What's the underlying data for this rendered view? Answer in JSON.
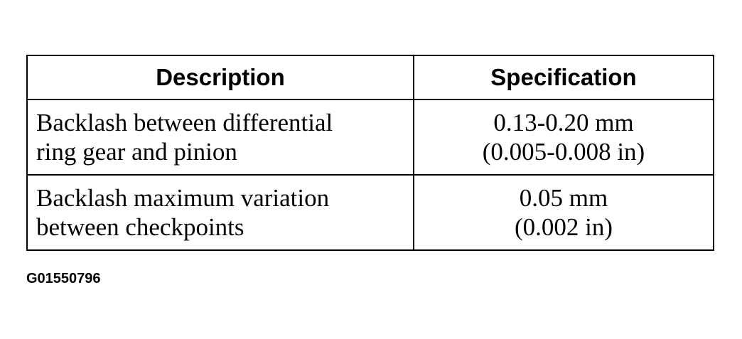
{
  "table": {
    "header": [
      "Description",
      "Specification"
    ],
    "rows": [
      [
        [
          "Backlash between differential",
          "ring gear and pinion"
        ],
        [
          "0.13-0.20 mm",
          "(0.005-0.008 in)"
        ]
      ],
      [
        [
          "Backlash maximum variation",
          "between checkpoints"
        ],
        [
          "0.05 mm",
          "(0.002 in)"
        ]
      ]
    ]
  },
  "figure_id": "G01550796"
}
